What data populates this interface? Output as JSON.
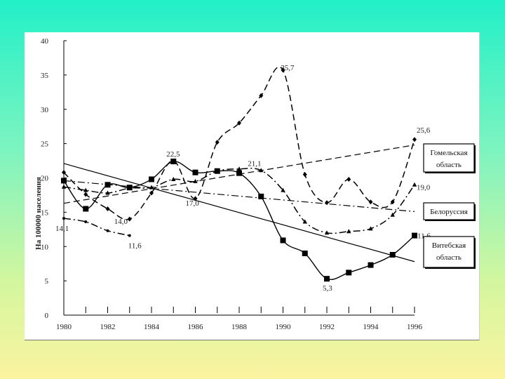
{
  "chart_data": {
    "type": "line",
    "title": "",
    "xlabel": "",
    "ylabel": "На 100000 населения",
    "xlim": [
      1980,
      1996
    ],
    "ylim": [
      0,
      40
    ],
    "x_ticks": [
      "1980",
      "1982",
      "1984",
      "1986",
      "1988",
      "1990",
      "1992",
      "1994",
      "1996"
    ],
    "y_ticks": [
      "0",
      "5",
      "10",
      "15",
      "20",
      "25",
      "30",
      "35",
      "40"
    ],
    "grid": false,
    "legend": [
      "Гомельская область",
      "Белоруссия",
      "Витебская область"
    ],
    "series": [
      {
        "name": "Гомельская область",
        "style": "dashed",
        "marker": "diamond",
        "x": [
          1980,
          1981,
          1982,
          1983,
          1984,
          1985,
          1986,
          1987,
          1988,
          1989,
          1990,
          1991,
          1992,
          1993,
          1994,
          1995,
          1996
        ],
        "y": [
          20.8,
          17.6,
          15.5,
          14.0,
          17.8,
          22.5,
          17.0,
          25.2,
          28.0,
          32.0,
          35.7,
          20.5,
          16.4,
          19.8,
          16.5,
          16.5,
          25.6
        ]
      },
      {
        "name": "Белоруссия",
        "style": "dashdot",
        "marker": "triangle",
        "x": [
          1980,
          1981,
          1982,
          1983,
          1984,
          1985,
          1986,
          1987,
          1988,
          1989,
          1990,
          1991,
          1992,
          1993,
          1994,
          1995,
          1996
        ],
        "y": [
          18.7,
          18.2,
          17.8,
          18.5,
          18.6,
          19.8,
          19.5,
          21.0,
          21.3,
          21.1,
          18.2,
          13.6,
          12.0,
          12.2,
          12.6,
          14.6,
          19.0
        ]
      },
      {
        "name": "Витебская область",
        "style": "solid",
        "marker": "square",
        "x": [
          1980,
          1981,
          1982,
          1983,
          1984,
          1985,
          1986,
          1987,
          1988,
          1989,
          1990,
          1991,
          1992,
          1993,
          1994,
          1995,
          1996
        ],
        "y": [
          19.6,
          15.5,
          19.0,
          18.6,
          19.8,
          22.4,
          20.8,
          21.0,
          20.7,
          17.3,
          10.9,
          9.0,
          5.3,
          6.2,
          7.3,
          8.8,
          11.6
        ]
      },
      {
        "name": "",
        "style": "dashdot",
        "marker": "dot",
        "x": [
          1980,
          1981,
          1982,
          1983
        ],
        "y": [
          14.1,
          13.6,
          12.3,
          11.6
        ]
      }
    ],
    "trend_lines": [
      {
        "style": "solid",
        "x": [
          1980,
          1996
        ],
        "y": [
          22.1,
          7.8
        ]
      },
      {
        "style": "dashed",
        "x": [
          1980,
          1996
        ],
        "y": [
          16.3,
          24.8
        ]
      },
      {
        "style": "dashdot",
        "x": [
          1980,
          1996
        ],
        "y": [
          19.6,
          15.1
        ]
      }
    ],
    "data_labels": [
      {
        "x": 1989.8,
        "y": 35.7,
        "text": "35,7"
      },
      {
        "x": 1996.0,
        "y": 25.6,
        "text": "25,6"
      },
      {
        "x": 1985.0,
        "y": 22.5,
        "text": "22,5"
      },
      {
        "x": 1989.0,
        "y": 21.1,
        "text": "21,1"
      },
      {
        "x": 1996.0,
        "y": 19.0,
        "text": "19,0"
      },
      {
        "x": 1983.0,
        "y": 14.0,
        "text": "14,0"
      },
      {
        "x": 1986.0,
        "y": 17.0,
        "text": "17,0"
      },
      {
        "x": 1980.0,
        "y": 14.1,
        "text": "14,1"
      },
      {
        "x": 1983.0,
        "y": 11.6,
        "text": "11,6"
      },
      {
        "x": 1992.0,
        "y": 5.3,
        "text": "5,3"
      },
      {
        "x": 1996.0,
        "y": 11.6,
        "text": "11,6"
      }
    ]
  }
}
